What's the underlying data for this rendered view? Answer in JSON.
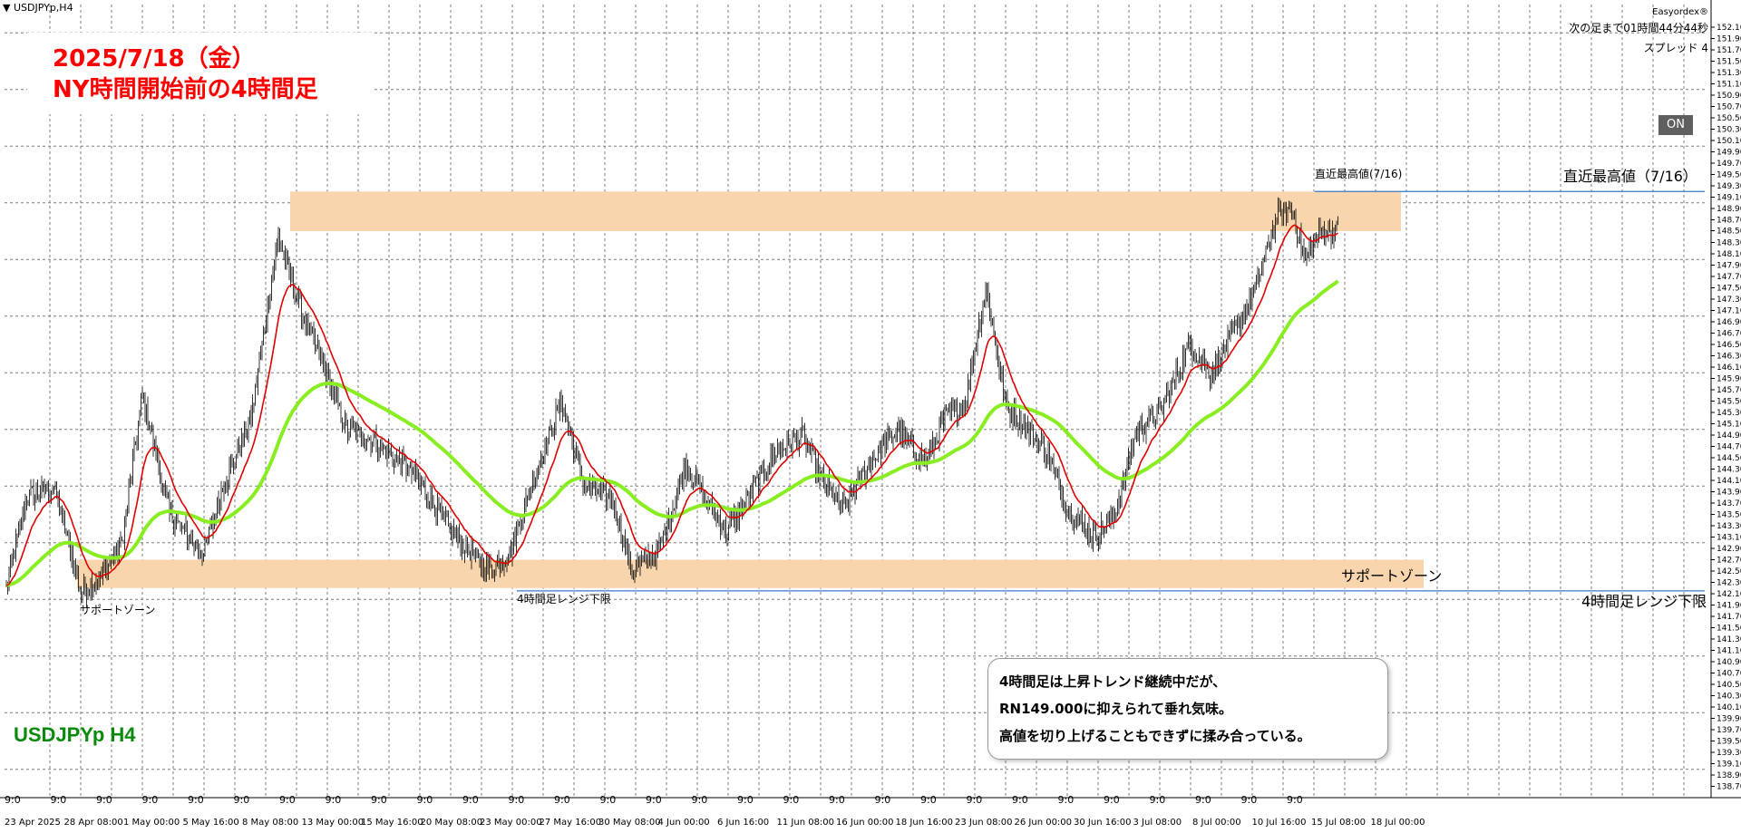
{
  "window": {
    "symbol_tag": "▼ USDJPYp,H4",
    "broker": "Easyordex®",
    "countdown": "次の足まで01時間44分44秒",
    "spread": "スプレッド 4",
    "on_button": "ON",
    "footer_symbol": "USDJPYp H4"
  },
  "title": {
    "line1": "2025/7/18（金）",
    "line2": "NY時間開始前の4時間足"
  },
  "annotations": {
    "recent_high_small": "直近最高値(7/16)",
    "recent_high_right": "直近最高値（7/16）",
    "range_low_small": "4時間足レンジ下限",
    "range_low_right": "4時間足レンジ下限",
    "support_left": "サポートゾーン",
    "support_right": "サポートゾーン"
  },
  "comment": {
    "line1": "4時間足は上昇トレンド継続中だが、",
    "line2": "RN149.000に抑えられて垂れ気味。",
    "line3": "高値を切り上げることもできずに揉み合っている。"
  },
  "colors": {
    "ema_fast": "#e00000",
    "ema_slow": "#88ee22",
    "zone": "#f8d5ad",
    "hline": "#3a78c8",
    "candle": "#000000"
  },
  "chart_data": {
    "type": "candlestick",
    "symbol": "USDJPYp",
    "timeframe": "H4",
    "ylim": [
      138.5,
      152.5
    ],
    "price_ticks": [
      "152.100",
      "151.900",
      "151.700",
      "151.500",
      "151.300",
      "151.100",
      "150.900",
      "150.700",
      "150.500",
      "150.300",
      "150.100",
      "149.900",
      "149.700",
      "149.500",
      "149.300",
      "149.100",
      "148.900",
      "148.700",
      "148.508",
      "148.300",
      "148.100",
      "147.900",
      "147.700",
      "147.500",
      "147.300",
      "147.100",
      "146.900",
      "146.700",
      "146.500",
      "146.300",
      "146.100",
      "145.900",
      "145.700",
      "145.500",
      "145.300",
      "145.100",
      "144.900",
      "144.700",
      "144.500",
      "144.300",
      "144.100",
      "143.900",
      "143.700",
      "143.500",
      "143.300",
      "143.100",
      "142.900",
      "142.700",
      "142.500",
      "142.300",
      "142.100",
      "141.900",
      "141.700",
      "141.500",
      "141.300",
      "141.100",
      "140.900",
      "140.700",
      "140.500",
      "140.300",
      "140.100",
      "139.900",
      "139.700",
      "139.500",
      "139.300",
      "139.100",
      "138.900",
      "138.700"
    ],
    "date_labels": [
      "23 Apr 2025",
      "28 Apr 08:00",
      "1 May 00:00",
      "5 May 16:00",
      "8 May 08:00",
      "13 May 00:00",
      "15 May 16:00",
      "20 May 08:00",
      "23 May 00:00",
      "27 May 16:00",
      "30 May 08:00",
      "4 Jun 00:00",
      "6 Jun 16:00",
      "11 Jun 08:00",
      "16 Jun 00:00",
      "18 Jun 16:00",
      "23 Jun 08:00",
      "26 Jun 00:00",
      "30 Jun 16:00",
      "3 Jul 08:00",
      "8 Jul 00:00",
      "10 Jul 16:00",
      "15 Jul 08:00",
      "18 Jul 00:00"
    ],
    "session_label": "9:0",
    "anchors": [
      [
        0,
        142.2
      ],
      [
        15,
        143.8
      ],
      [
        35,
        144.0
      ],
      [
        55,
        142.1
      ],
      [
        70,
        142.4
      ],
      [
        85,
        143.0
      ],
      [
        100,
        145.6
      ],
      [
        120,
        143.5
      ],
      [
        145,
        142.8
      ],
      [
        158,
        143.9
      ],
      [
        180,
        145.2
      ],
      [
        200,
        148.4
      ],
      [
        215,
        147.2
      ],
      [
        235,
        146.0
      ],
      [
        250,
        145.0
      ],
      [
        270,
        144.8
      ],
      [
        300,
        144.2
      ],
      [
        330,
        143.1
      ],
      [
        355,
        142.5
      ],
      [
        370,
        142.8
      ],
      [
        390,
        144.3
      ],
      [
        408,
        145.5
      ],
      [
        425,
        144.0
      ],
      [
        445,
        143.8
      ],
      [
        460,
        142.5
      ],
      [
        480,
        142.9
      ],
      [
        500,
        144.4
      ],
      [
        515,
        143.7
      ],
      [
        530,
        143.2
      ],
      [
        545,
        143.8
      ],
      [
        565,
        144.6
      ],
      [
        585,
        144.9
      ],
      [
        600,
        144.1
      ],
      [
        615,
        143.6
      ],
      [
        635,
        144.4
      ],
      [
        655,
        145.0
      ],
      [
        675,
        144.4
      ],
      [
        690,
        145.2
      ],
      [
        705,
        145.5
      ],
      [
        720,
        147.5
      ],
      [
        735,
        145.4
      ],
      [
        750,
        145.0
      ],
      [
        765,
        144.6
      ],
      [
        780,
        143.6
      ],
      [
        800,
        143.1
      ],
      [
        815,
        143.5
      ],
      [
        830,
        144.9
      ],
      [
        850,
        145.4
      ],
      [
        870,
        146.5
      ],
      [
        885,
        146.0
      ],
      [
        905,
        146.8
      ],
      [
        920,
        147.6
      ],
      [
        935,
        148.8
      ],
      [
        945,
        148.9
      ],
      [
        955,
        148.0
      ],
      [
        965,
        148.5
      ],
      [
        975,
        148.5
      ]
    ],
    "support_zone": [
      142.2,
      142.7
    ],
    "resistance_zone": [
      148.5,
      149.2
    ],
    "recent_high": 149.2,
    "range_low": 142.15
  }
}
